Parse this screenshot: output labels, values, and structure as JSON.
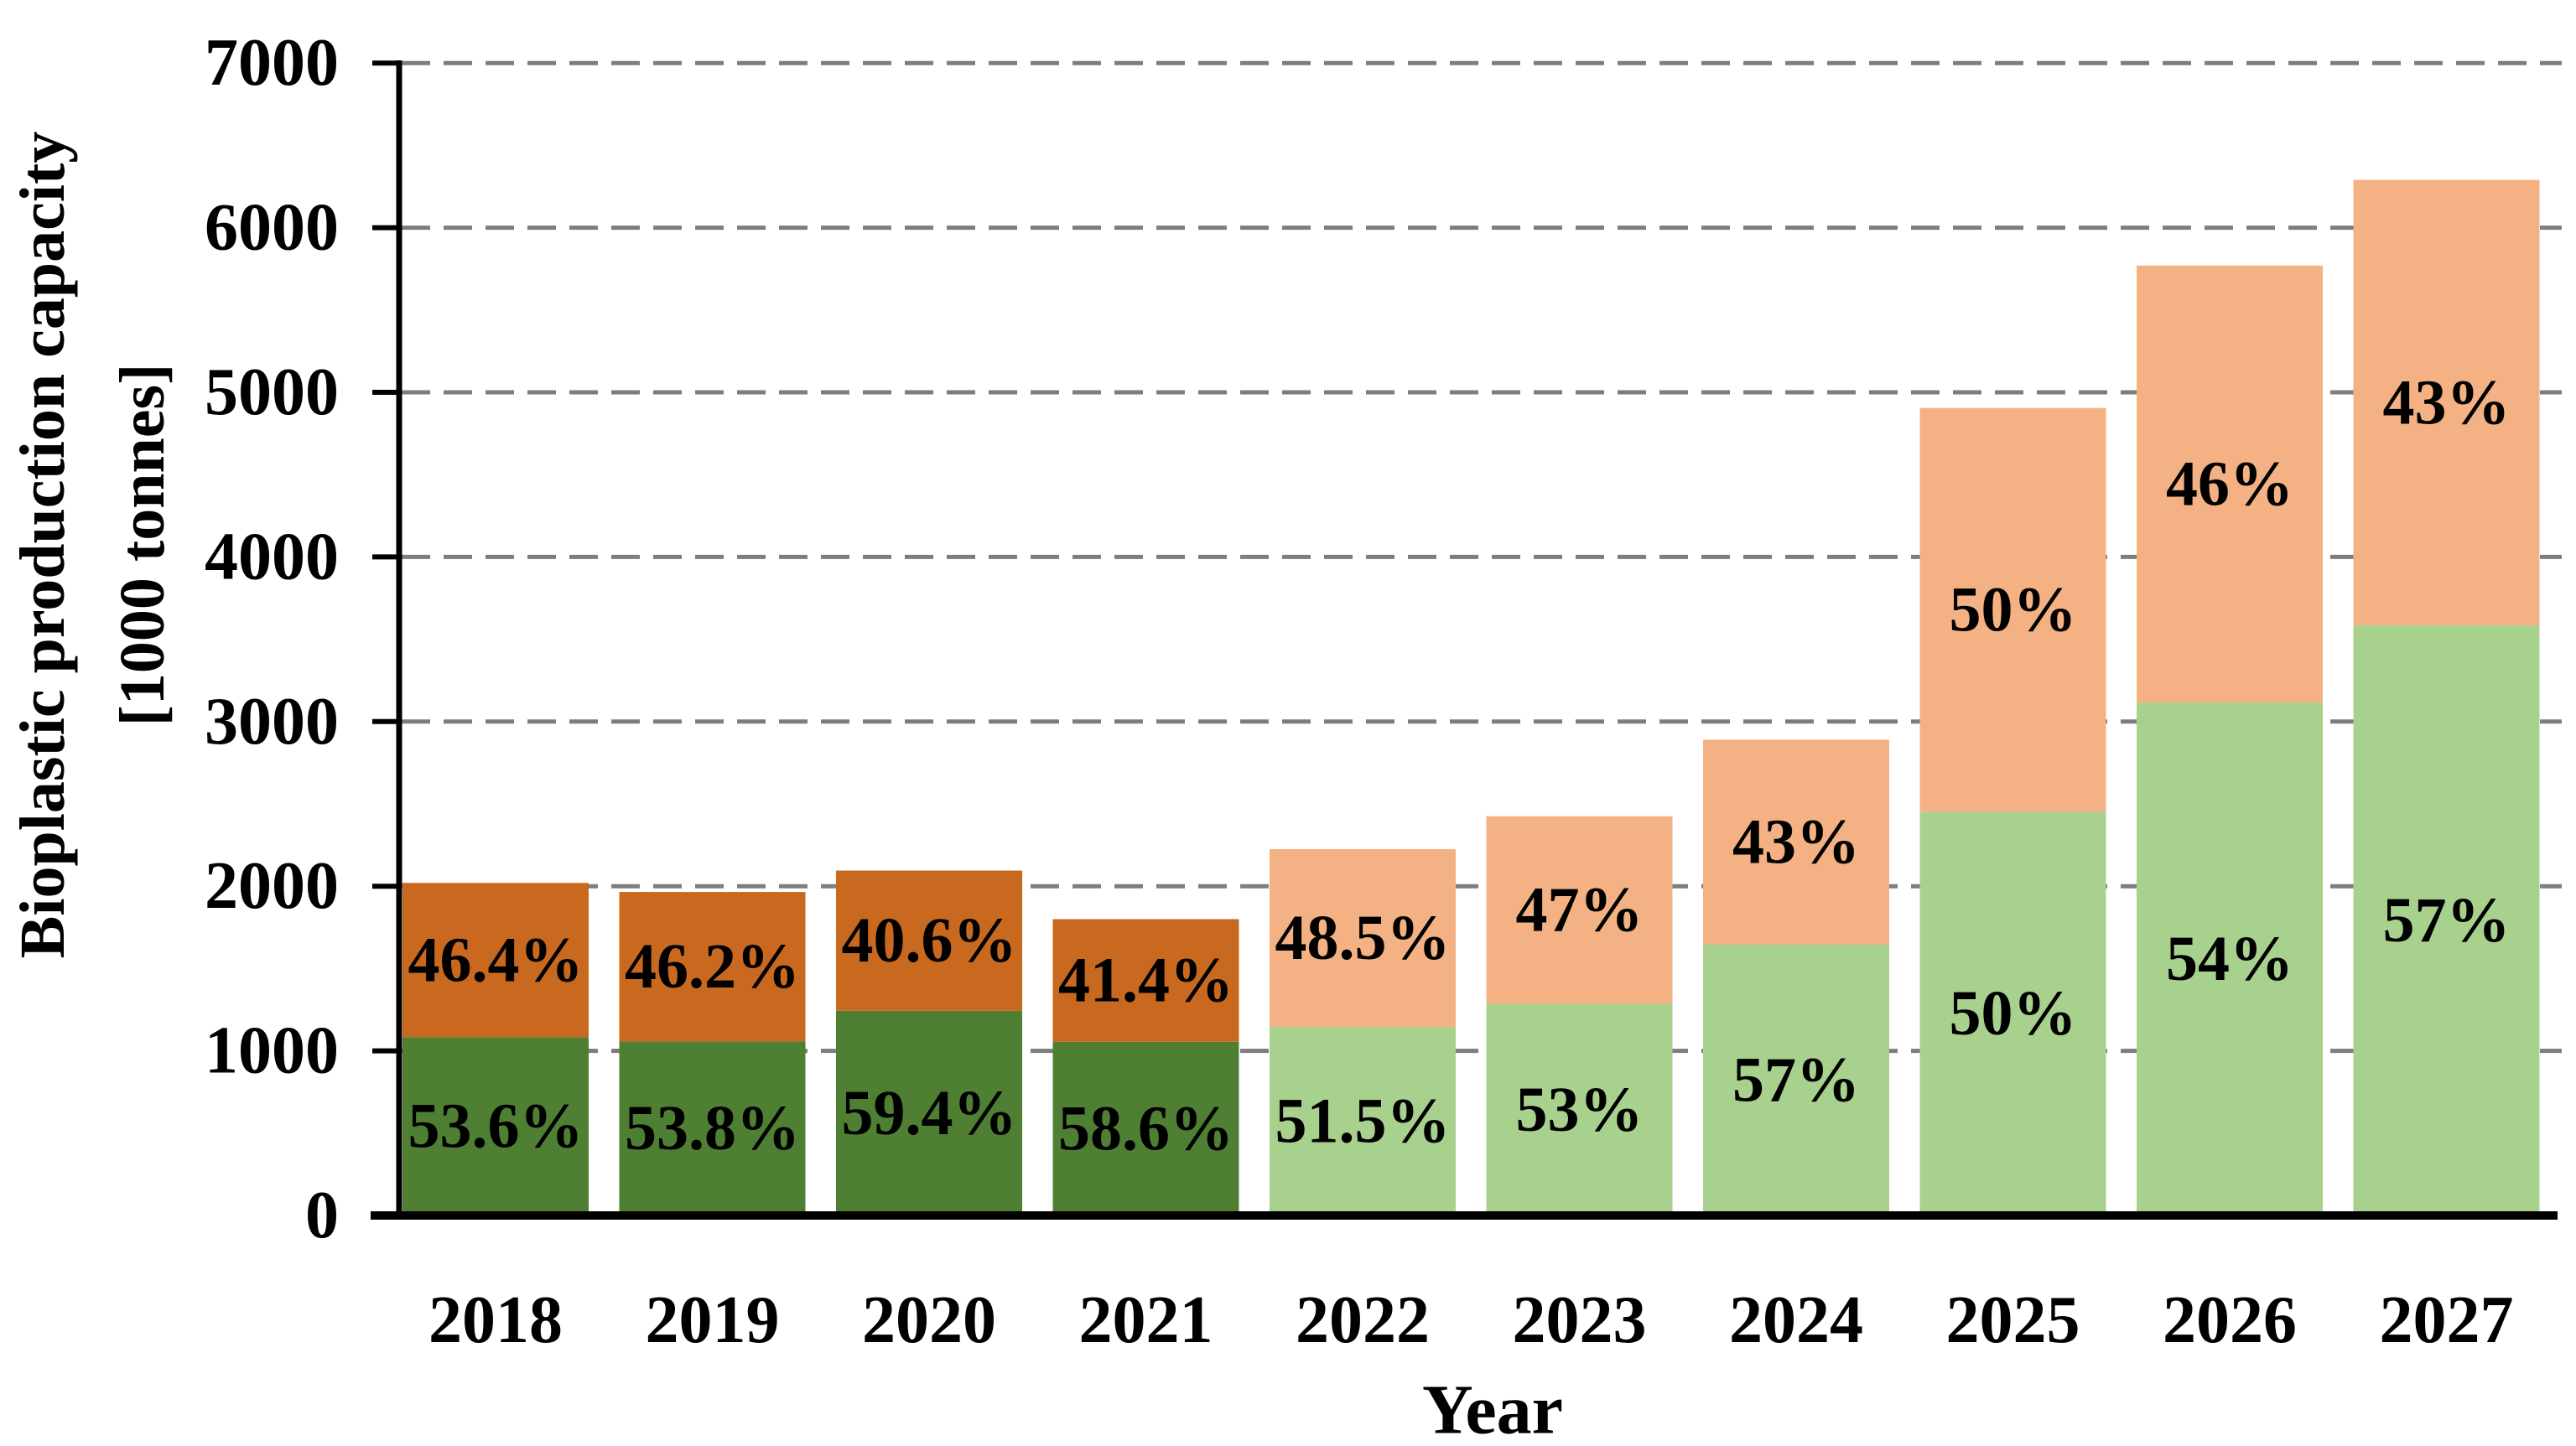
{
  "figure": {
    "background": "#ffffff"
  },
  "y_axis": {
    "title_line1": "Bioplastic production capacity",
    "title_line2": "[1000 tonnes]",
    "min": 0,
    "max": 7000,
    "tick_values": [
      0,
      1000,
      2000,
      3000,
      4000,
      5000,
      6000,
      7000
    ],
    "tick_labels": [
      "0",
      "1000",
      "2000",
      "3000",
      "4000",
      "5000",
      "6000",
      "7000"
    ]
  },
  "x_axis": {
    "title": "Year"
  },
  "chart_data": {
    "type": "bar",
    "stacked": true,
    "title": "",
    "xlabel": "Year",
    "ylabel": "Bioplastic production capacity [1000 tonnes]",
    "ylim": [
      0,
      7000
    ],
    "grid": "horizontal-dashed",
    "legend": "none",
    "categories": [
      "2018",
      "2019",
      "2020",
      "2021",
      "2022",
      "2023",
      "2024",
      "2025",
      "2026",
      "2027"
    ],
    "totals_1000t": [
      2020,
      1965,
      2095,
      1800,
      2225,
      2425,
      2890,
      4905,
      5770,
      6290
    ],
    "bar_shades": [
      "dark",
      "dark",
      "dark",
      "dark",
      "light",
      "light",
      "light",
      "light",
      "light",
      "light"
    ],
    "series": [
      {
        "name": "green-bottom-segment",
        "values": [
          1083,
          1057,
          1244,
          1055,
          1146,
          1285,
          1647,
          2453,
          3116,
          3585
        ],
        "labels": [
          "53.6%",
          "53.8%",
          "59.4%",
          "58.6%",
          "51.5%",
          "53%",
          "57%",
          "50%",
          "54%",
          "57%"
        ]
      },
      {
        "name": "orange-top-segment",
        "values": [
          937,
          908,
          851,
          745,
          1079,
          1140,
          1243,
          2452,
          2654,
          2705
        ],
        "labels": [
          "46.4%",
          "46.2%",
          "40.6%",
          "41.4%",
          "48.5%",
          "47%",
          "43%",
          "50%",
          "46%",
          "43%"
        ]
      }
    ],
    "palette": {
      "dark_green": "#4F7F33",
      "light_green": "#A9D18E",
      "dark_orange": "#C9691F",
      "light_orange": "#F4B183",
      "grid": "#7D7D7D",
      "axis": "#000000"
    }
  }
}
